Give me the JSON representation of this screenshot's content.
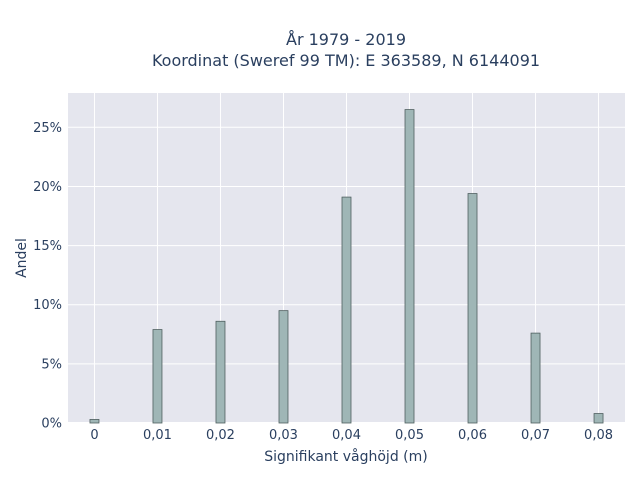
{
  "chart_data": {
    "type": "bar",
    "title_line1": "År 1979 - 2019",
    "title_line2": "Koordinat (Sweref 99 TM): E 363589, N 6144091",
    "xlabel": "Signifikant våghöjd (m)",
    "ylabel": "Andel",
    "x_tick_labels": [
      "0",
      "0,01",
      "0,02",
      "0,03",
      "0,04",
      "0,05",
      "0,06",
      "0,07",
      "0,08"
    ],
    "y_tick_labels": [
      "0%",
      "5%",
      "10%",
      "15%",
      "20%",
      "25%"
    ],
    "y_ticks": [
      0,
      5,
      10,
      15,
      20,
      25
    ],
    "x": [
      0,
      0.01,
      0.02,
      0.03,
      0.04,
      0.05,
      0.06,
      0.07,
      0.08
    ],
    "values": [
      0.3,
      7.9,
      8.6,
      9.5,
      19.1,
      26.5,
      19.4,
      7.6,
      0.8
    ],
    "xlim": [
      -0.0042,
      0.0842
    ],
    "ylim": [
      0,
      27.9
    ],
    "grid": true,
    "colors": {
      "plot_background": "#e5e6ee",
      "grid": "#ffffff",
      "bar_fill": "#9fb6b6",
      "bar_stroke": "#4f5f5f"
    }
  }
}
